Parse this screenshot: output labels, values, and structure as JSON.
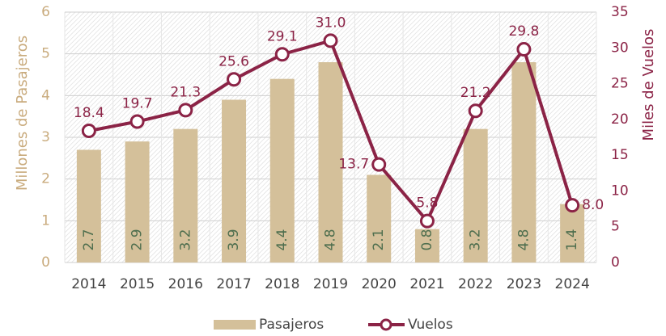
{
  "chart_data": {
    "type": "bar-line",
    "categories": [
      "2014",
      "2015",
      "2016",
      "2017",
      "2018",
      "2019",
      "2020",
      "2021",
      "2022",
      "2023",
      "2024"
    ],
    "ylabel": "Millones de Pasajeros",
    "y2label": "Miles de Vuelos",
    "ylim": [
      0,
      6
    ],
    "yticks": [
      0,
      1,
      2,
      3,
      4,
      5,
      6
    ],
    "y2lim": [
      0,
      35
    ],
    "y2ticks": [
      0,
      5,
      10,
      15,
      20,
      25,
      30,
      35
    ],
    "grid": true,
    "legend": "bottom",
    "series": [
      {
        "name": "Pasajeros",
        "type": "bar",
        "color": "#d4c09a",
        "label_color": "#4e6e4e",
        "values": [
          2.7,
          2.9,
          3.2,
          3.9,
          4.4,
          4.8,
          2.1,
          0.8,
          3.2,
          4.8,
          1.4
        ]
      },
      {
        "name": "Vuelos",
        "type": "line",
        "axis": "y2",
        "color": "#8b2346",
        "values": [
          18.4,
          19.7,
          21.3,
          25.6,
          29.1,
          31.0,
          13.7,
          5.8,
          21.2,
          29.8,
          8.0
        ],
        "value_labels": [
          "18.4",
          "19.7",
          "21.3",
          "25.6",
          "29.1",
          "31.0",
          "13.7",
          "5.8",
          "21.2",
          "29.8",
          "8.0"
        ]
      }
    ]
  }
}
